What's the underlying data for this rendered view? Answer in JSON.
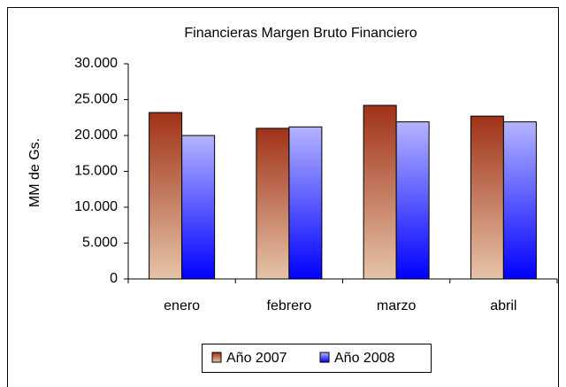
{
  "chart_data": {
    "type": "bar",
    "title": "Financieras Margen Bruto Financiero",
    "y_label": "MM de Gs.",
    "categories": [
      "enero",
      "febrero",
      "marzo",
      "abril"
    ],
    "series": [
      {
        "name": "Año 2007",
        "color": "#a03218",
        "values": [
          23200,
          21000,
          24200,
          22700
        ]
      },
      {
        "name": "Año 2008",
        "color": "#0000ff",
        "values": [
          20000,
          21200,
          21900,
          21900
        ]
      }
    ],
    "ylim": [
      0,
      30000
    ],
    "yticks": [
      0,
      {
        "value": 5000,
        "label": "5.000"
      },
      {
        "value": 10000,
        "label": "10.000"
      },
      {
        "value": 15000,
        "label": "15.000"
      },
      {
        "value": 20000,
        "label": "20.000"
      },
      {
        "value": 25000,
        "label": "25.000"
      },
      {
        "value": 30000,
        "label": "30.000"
      }
    ],
    "legend": "bottom"
  }
}
